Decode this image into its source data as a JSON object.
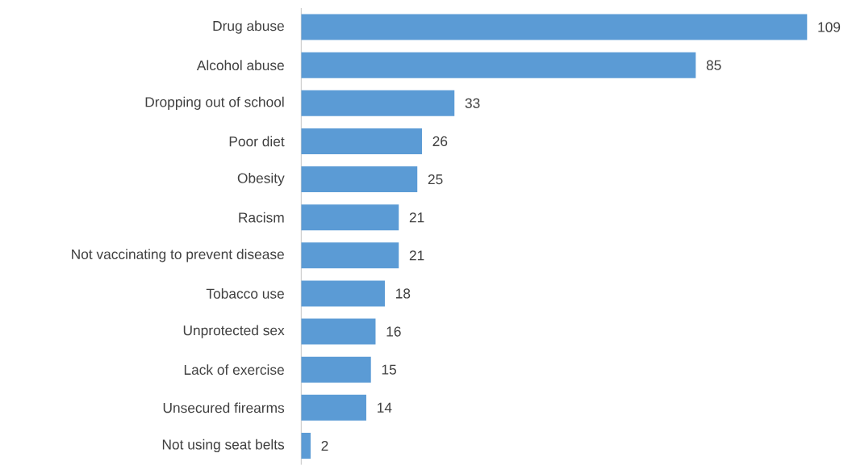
{
  "chart_data": {
    "type": "bar",
    "orientation": "horizontal",
    "categories": [
      "Drug abuse",
      "Alcohol abuse",
      "Dropping out of school",
      "Poor diet",
      "Obesity",
      "Racism",
      "Not vaccinating to prevent disease",
      "Tobacco use",
      "Unprotected sex",
      "Lack of exercise",
      "Unsecured firearms",
      "Not using seat belts"
    ],
    "values": [
      109,
      85,
      33,
      26,
      25,
      21,
      21,
      18,
      16,
      15,
      14,
      2
    ],
    "color": "#5b9bd5",
    "data_labels": true
  }
}
